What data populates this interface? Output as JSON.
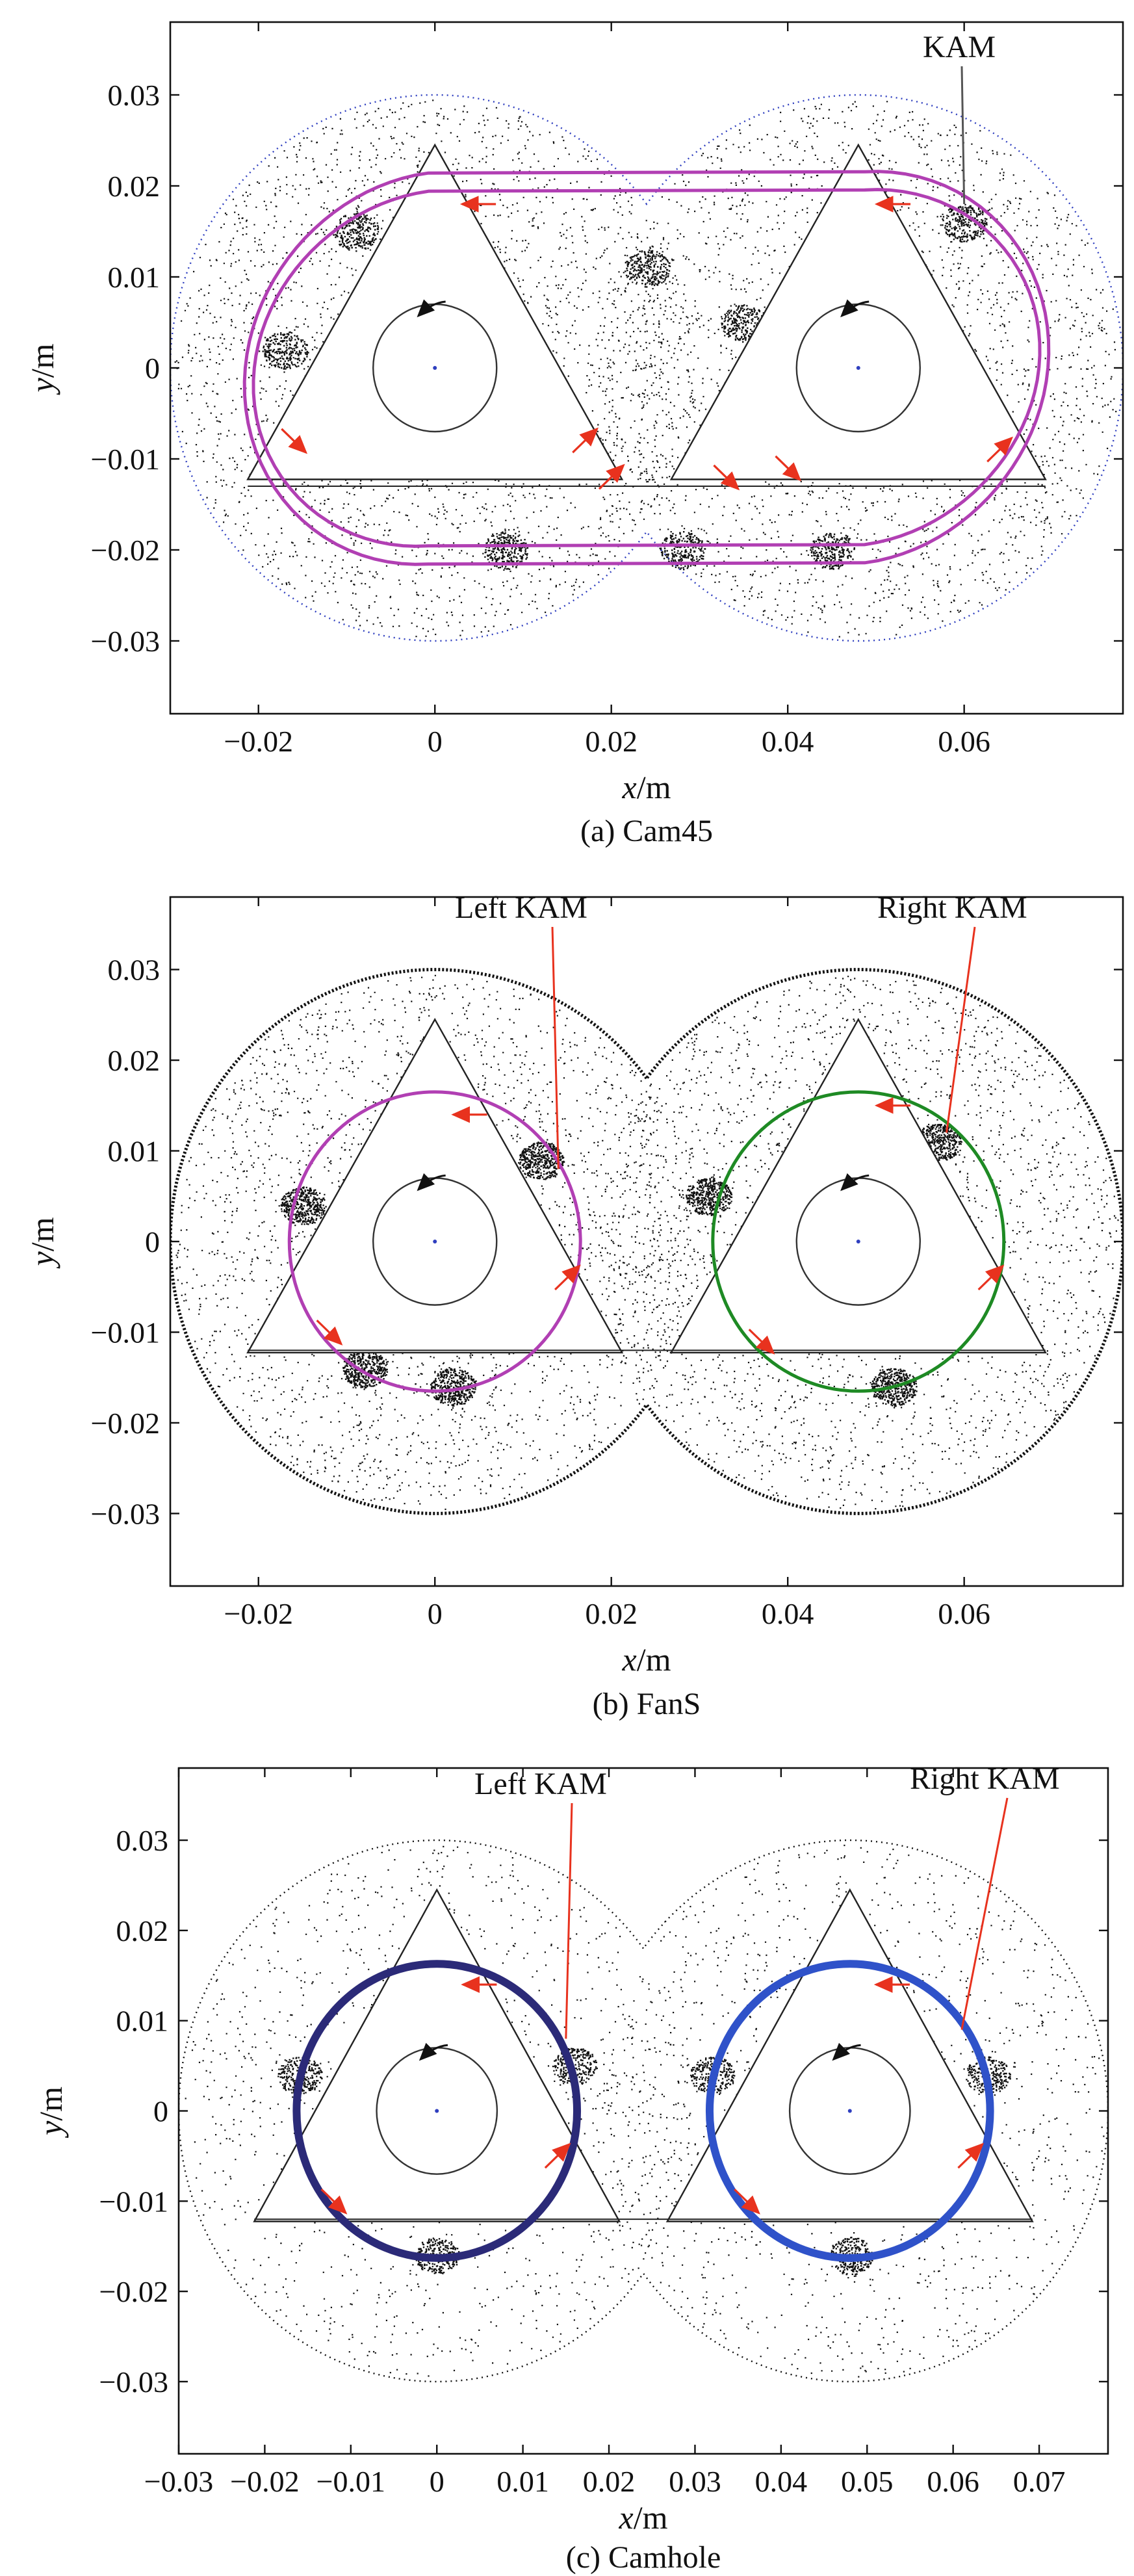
{
  "figure": {
    "colors": {
      "frame": "#111111",
      "scatter": "#111111",
      "kam_pink": "#b13fb3",
      "kam_green": "#1e8a24",
      "kam_dark": "#2b2a78",
      "kam_blue": "#2f52c9",
      "arrow_red": "#e8321e",
      "leader_red": "#e8321e",
      "leader_gray": "#555555",
      "barrel_blue": "#2f3fbf",
      "blob_blue": "#4a5ad8"
    }
  },
  "chart_data": [
    {
      "type": "scatter",
      "name": "Cam45",
      "title": "",
      "caption": "(a) Cam45",
      "xlabel_var": "x",
      "xlabel_unit": "/m",
      "ylabel_var": "y",
      "ylabel_unit": "/m",
      "xlim": [
        -0.03,
        0.078
      ],
      "ylim": [
        -0.038,
        0.038
      ],
      "x_ticks": [
        -0.02,
        0,
        0.02,
        0.04,
        0.06
      ],
      "x_tick_labels": [
        "−0.02",
        "0",
        "0.02",
        "0.04",
        "0.06"
      ],
      "y_ticks": [
        0.03,
        0.02,
        0.01,
        0,
        -0.01,
        -0.02,
        -0.03
      ],
      "y_tick_labels": [
        "0.03",
        "0.02",
        "0.01",
        "0",
        "−0.01",
        "−0.02",
        "−0.03"
      ],
      "barrel": {
        "centers_x": [
          0,
          0.048
        ],
        "radius": 0.03,
        "style": "dotted",
        "color_key": "barrel_blue"
      },
      "rotor": {
        "tip_radius": 0.0245,
        "shaft_radius": 0.007,
        "bottom_chord_y": -0.013
      },
      "kam_curves": [
        {
          "shape": "figure-eight",
          "color_key": "kam_pink",
          "outer_half_width": 0.0215,
          "inner_half_width": 0.0195
        }
      ],
      "annotations": [
        {
          "text": "KAM",
          "target": [
            0.06,
            0.018
          ],
          "color_key": "leader_gray"
        }
      ],
      "flow_arrows": [
        {
          "at": [
            0.005,
            0.018
          ],
          "dir": "left"
        },
        {
          "at": [
            0.052,
            0.018
          ],
          "dir": "left"
        },
        {
          "at": [
            -0.016,
            -0.008
          ],
          "dir": "down-right"
        },
        {
          "at": [
            0.017,
            -0.008
          ],
          "dir": "up-right"
        },
        {
          "at": [
            0.02,
            -0.012
          ],
          "dir": "up-right"
        },
        {
          "at": [
            0.033,
            -0.012
          ],
          "dir": "down-right"
        },
        {
          "at": [
            0.04,
            -0.011
          ],
          "dir": "down-right"
        },
        {
          "at": [
            0.064,
            -0.009
          ],
          "dir": "up-right"
        }
      ]
    },
    {
      "type": "scatter",
      "name": "FanS",
      "title": "",
      "caption": "(b) FanS",
      "xlabel_var": "x",
      "xlabel_unit": "/m",
      "ylabel_var": "y",
      "ylabel_unit": "/m",
      "xlim": [
        -0.03,
        0.078
      ],
      "ylim": [
        -0.038,
        0.038
      ],
      "x_ticks": [
        -0.02,
        0,
        0.02,
        0.04,
        0.06
      ],
      "x_tick_labels": [
        "−0.02",
        "0",
        "0.02",
        "0.04",
        "0.06"
      ],
      "y_ticks": [
        0.03,
        0.02,
        0.01,
        0,
        -0.01,
        -0.02,
        -0.03
      ],
      "y_tick_labels": [
        "0.03",
        "0.02",
        "0.01",
        "0",
        "−0.01",
        "−0.02",
        "−0.03"
      ],
      "barrel": {
        "centers_x": [
          0,
          0.048
        ],
        "radius": 0.03,
        "style": "solid-dotted",
        "color_key": "frame"
      },
      "rotor": {
        "tip_radius": 0.0245,
        "shaft_radius": 0.007,
        "bottom_chord_y": -0.012
      },
      "kam_curves": [
        {
          "shape": "circle",
          "center": [
            0,
            0
          ],
          "radius": 0.0165,
          "color_key": "kam_pink"
        },
        {
          "shape": "circle",
          "center": [
            0.048,
            0
          ],
          "radius": 0.0165,
          "color_key": "kam_green"
        }
      ],
      "annotations": [
        {
          "text": "Left KAM",
          "target": [
            0.014,
            0.008
          ],
          "color_key": "leader_red"
        },
        {
          "text": "Right KAM",
          "target": [
            0.058,
            0.012
          ],
          "color_key": "leader_red"
        }
      ],
      "flow_arrows": [
        {
          "at": [
            0.004,
            0.014
          ],
          "dir": "left"
        },
        {
          "at": [
            -0.012,
            -0.01
          ],
          "dir": "down-right"
        },
        {
          "at": [
            0.015,
            -0.004
          ],
          "dir": "up-right"
        },
        {
          "at": [
            0.052,
            0.015
          ],
          "dir": "left"
        },
        {
          "at": [
            0.037,
            -0.011
          ],
          "dir": "down-right"
        },
        {
          "at": [
            0.063,
            -0.004
          ],
          "dir": "up-right"
        }
      ]
    },
    {
      "type": "scatter",
      "name": "Camhole",
      "title": "",
      "caption": "(c) Camhole",
      "xlabel_var": "x",
      "xlabel_unit": "/m",
      "ylabel_var": "y",
      "ylabel_unit": "/m",
      "xlim": [
        -0.03,
        0.078
      ],
      "ylim": [
        -0.038,
        0.038
      ],
      "x_ticks": [
        -0.03,
        -0.02,
        -0.01,
        0,
        0.01,
        0.02,
        0.03,
        0.04,
        0.05,
        0.06,
        0.07
      ],
      "x_tick_labels": [
        "−0.03",
        "−0.02",
        "−0.01",
        "0",
        "0.01",
        "0.02",
        "0.03",
        "0.04",
        "0.05",
        "0.06",
        "0.07"
      ],
      "y_ticks": [
        0.03,
        0.02,
        0.01,
        0,
        -0.01,
        -0.02,
        -0.03
      ],
      "y_tick_labels": [
        "0.03",
        "0.02",
        "0.01",
        "0",
        "−0.01",
        "−0.02",
        "−0.03"
      ],
      "barrel": {
        "centers_x": [
          0,
          0.048
        ],
        "radius": 0.03,
        "style": "dotted",
        "color_key": "frame"
      },
      "rotor": {
        "tip_radius": 0.0245,
        "shaft_radius": 0.007,
        "bottom_chord_y": -0.012
      },
      "kam_curves": [
        {
          "shape": "circle",
          "center": [
            0,
            0
          ],
          "radius": 0.0163,
          "color_key": "kam_dark"
        },
        {
          "shape": "circle",
          "center": [
            0.048,
            0
          ],
          "radius": 0.0163,
          "color_key": "kam_blue"
        }
      ],
      "annotations": [
        {
          "text": "Left KAM",
          "target": [
            0.015,
            0.008
          ],
          "color_key": "leader_red"
        },
        {
          "text": "Right KAM",
          "target": [
            0.061,
            0.009
          ],
          "color_key": "leader_red"
        }
      ],
      "flow_arrows": [
        {
          "at": [
            0.005,
            0.014
          ],
          "dir": "left"
        },
        {
          "at": [
            -0.012,
            -0.01
          ],
          "dir": "down-right"
        },
        {
          "at": [
            0.014,
            -0.005
          ],
          "dir": "up-right"
        },
        {
          "at": [
            0.053,
            0.014
          ],
          "dir": "left"
        },
        {
          "at": [
            0.036,
            -0.01
          ],
          "dir": "down-right"
        },
        {
          "at": [
            0.062,
            -0.005
          ],
          "dir": "up-right"
        }
      ]
    }
  ]
}
